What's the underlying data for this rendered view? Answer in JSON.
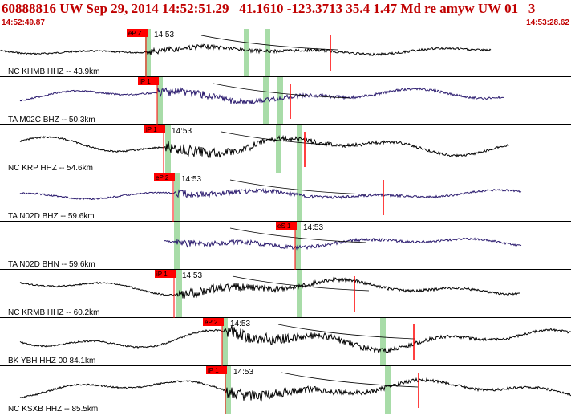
{
  "header": {
    "title": "60888816 UW Sep 29, 2014 14:52:51.29   41.1610 -123.3713 35.4 1.47 Md re amyw UW 01   3",
    "start_time": "14:52:49.87",
    "end_time": "14:53:28.62"
  },
  "colors": {
    "header_text": "#c00000",
    "pick_box": "#ff0000",
    "green_band": "#a8dca8",
    "trace_black": "#000000",
    "trace_navy": "#2a1a6e"
  },
  "traces": [
    {
      "label": "NC KHMB HHZ -- 43.9km",
      "pick": "eP Z",
      "time_label": "14:53",
      "trace_color": "#000000",
      "amp": 0.35
    },
    {
      "label": "TA M02C BHZ -- 50.3km",
      "pick": "iP 1",
      "time_label": "",
      "trace_color": "#2a1a6e",
      "amp": 0.6
    },
    {
      "label": "NC KRP HHZ -- 54.6km",
      "pick": "iP 1",
      "time_label": "14:53",
      "trace_color": "#000000",
      "amp": 0.85
    },
    {
      "label": "TA N02D BHZ -- 59.6km",
      "pick": "eP 2",
      "time_label": "14:53",
      "trace_color": "#2a1a6e",
      "amp": 0.4
    },
    {
      "label": "TA N02D BHN -- 59.6km",
      "pick": "eS 1",
      "time_label": "14:53",
      "trace_color": "#2a1a6e",
      "amp": 0.45
    },
    {
      "label": "NC KRMB HHZ -- 60.2km",
      "pick": "iP 1",
      "time_label": "14:53",
      "trace_color": "#000000",
      "amp": 0.7
    },
    {
      "label": "BK YBH HHZ 00 84.1km",
      "pick": "eP 2",
      "time_label": "14:53",
      "trace_color": "#000000",
      "amp": 0.95
    },
    {
      "label": "NC KSXB HHZ -- 85.5km",
      "pick": "iP 1",
      "time_label": "14:53",
      "trace_color": "#000000",
      "amp": 0.8
    }
  ]
}
